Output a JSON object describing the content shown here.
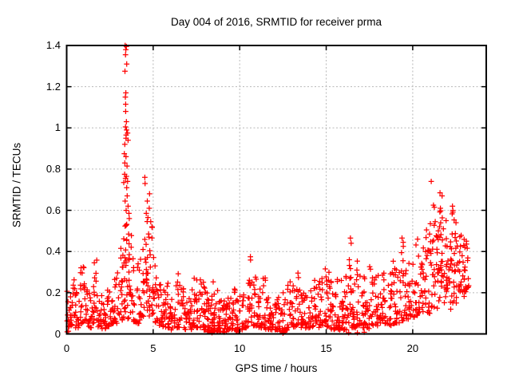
{
  "chart_data": {
    "type": "scatter",
    "title": "Day 004 of 2016, SRMTID for receiver prma",
    "xlabel": "GPS time / hours",
    "ylabel": "SRMTID / TECUs",
    "xlim": [
      0,
      24.25
    ],
    "ylim": [
      0,
      1.4
    ],
    "x_ticks": [
      0,
      5,
      10,
      15,
      20
    ],
    "x_tick_labels": [
      "0",
      "5",
      "10",
      "15",
      "20"
    ],
    "y_ticks": [
      0,
      0.2,
      0.4,
      0.6,
      0.8,
      1,
      1.2,
      1.4
    ],
    "y_tick_labels": [
      "0",
      "0.2",
      "0.4",
      "0.6",
      "0.8",
      "1",
      "1.2",
      "1.4"
    ],
    "grid": true,
    "legend": false,
    "marker": "plus",
    "marker_color": "#ff0000",
    "grid_color": "#b8b8b8",
    "frame_color": "#000000",
    "background_color": "#ffffff",
    "series_name": "SRMTID",
    "envelope_buckets": [
      [
        0.125,
        0.03,
        0.28,
        16
      ],
      [
        0.375,
        0.04,
        0.3,
        16
      ],
      [
        0.625,
        0.03,
        0.25,
        16
      ],
      [
        0.875,
        0.05,
        0.33,
        16
      ],
      [
        1.125,
        0.04,
        0.26,
        16
      ],
      [
        1.375,
        0.03,
        0.22,
        14
      ],
      [
        1.625,
        0.05,
        0.36,
        17,
        1.6
      ],
      [
        1.875,
        0.03,
        0.3,
        14
      ],
      [
        2.125,
        0.02,
        0.2,
        14
      ],
      [
        2.375,
        0.03,
        0.24,
        14
      ],
      [
        2.625,
        0.05,
        0.31,
        15
      ],
      [
        2.875,
        0.05,
        0.3,
        15
      ],
      [
        3.125,
        0.06,
        0.42,
        16,
        1.6
      ],
      [
        3.375,
        0.08,
        0.55,
        22,
        1.2
      ],
      [
        3.625,
        0.07,
        0.5,
        20,
        1.3
      ],
      [
        3.875,
        0.06,
        0.38,
        14
      ],
      [
        4.125,
        0.05,
        0.35,
        14
      ],
      [
        4.375,
        0.08,
        0.45,
        16,
        1.5
      ],
      [
        4.625,
        0.1,
        0.58,
        20,
        1.2
      ],
      [
        4.875,
        0.08,
        0.52,
        18,
        1.3
      ],
      [
        5.125,
        0.05,
        0.4,
        16,
        1.6
      ],
      [
        5.375,
        0.04,
        0.25,
        14
      ],
      [
        5.625,
        0.03,
        0.22,
        16
      ],
      [
        5.875,
        0.03,
        0.27,
        16
      ],
      [
        6.125,
        0.02,
        0.2,
        14
      ],
      [
        6.375,
        0.03,
        0.3,
        14
      ],
      [
        6.625,
        0.03,
        0.24,
        14
      ],
      [
        6.875,
        0.02,
        0.22,
        14
      ],
      [
        7.125,
        0.02,
        0.2,
        14
      ],
      [
        7.375,
        0.03,
        0.28,
        14
      ],
      [
        7.625,
        0.03,
        0.3,
        16
      ],
      [
        7.875,
        0.02,
        0.26,
        18
      ],
      [
        8.125,
        0.01,
        0.22,
        20
      ],
      [
        8.375,
        0.01,
        0.26,
        20
      ],
      [
        8.625,
        0.01,
        0.22,
        20
      ],
      [
        8.875,
        0.01,
        0.2,
        20
      ],
      [
        9.125,
        0.01,
        0.18,
        18
      ],
      [
        9.375,
        0.02,
        0.2,
        16
      ],
      [
        9.625,
        0.02,
        0.22,
        16
      ],
      [
        9.875,
        0.01,
        0.18,
        16
      ],
      [
        10.125,
        0.02,
        0.2,
        14
      ],
      [
        10.375,
        0.03,
        0.25,
        14
      ],
      [
        10.625,
        0.05,
        0.36,
        16,
        1.4
      ],
      [
        10.875,
        0.04,
        0.3,
        14
      ],
      [
        11.125,
        0.03,
        0.22,
        14
      ],
      [
        11.375,
        0.03,
        0.3,
        14
      ],
      [
        11.625,
        0.02,
        0.24,
        14
      ],
      [
        11.875,
        0.02,
        0.2,
        16
      ],
      [
        12.125,
        0.02,
        0.18,
        16
      ],
      [
        12.375,
        0.01,
        0.16,
        14
      ],
      [
        12.625,
        0.01,
        0.2,
        14
      ],
      [
        12.875,
        0.03,
        0.26,
        14
      ],
      [
        13.125,
        0.03,
        0.32,
        14
      ],
      [
        13.375,
        0.04,
        0.3,
        14
      ],
      [
        13.625,
        0.03,
        0.22,
        14
      ],
      [
        13.875,
        0.02,
        0.2,
        14
      ],
      [
        14.125,
        0.03,
        0.24,
        14
      ],
      [
        14.375,
        0.04,
        0.3,
        14
      ],
      [
        14.625,
        0.03,
        0.26,
        14
      ],
      [
        14.875,
        0.04,
        0.32,
        16
      ],
      [
        15.125,
        0.03,
        0.3,
        16
      ],
      [
        15.375,
        0.02,
        0.26,
        16
      ],
      [
        15.625,
        0.02,
        0.3,
        18
      ],
      [
        15.875,
        0.02,
        0.28,
        18
      ],
      [
        16.125,
        0.02,
        0.3,
        16
      ],
      [
        16.375,
        0.03,
        0.44,
        16,
        1.5
      ],
      [
        16.625,
        0.03,
        0.33,
        16
      ],
      [
        16.875,
        0.04,
        0.41,
        16,
        1.6
      ],
      [
        17.125,
        0.03,
        0.3,
        16
      ],
      [
        17.375,
        0.02,
        0.28,
        16
      ],
      [
        17.625,
        0.04,
        0.36,
        14
      ],
      [
        17.875,
        0.04,
        0.28,
        14
      ],
      [
        18.125,
        0.05,
        0.3,
        14
      ],
      [
        18.375,
        0.05,
        0.34,
        14
      ],
      [
        18.625,
        0.04,
        0.3,
        14
      ],
      [
        18.875,
        0.05,
        0.38,
        14
      ],
      [
        19.125,
        0.05,
        0.33,
        14
      ],
      [
        19.375,
        0.06,
        0.44,
        16,
        1.5
      ],
      [
        19.625,
        0.07,
        0.36,
        14
      ],
      [
        19.875,
        0.08,
        0.35,
        14
      ],
      [
        20.125,
        0.08,
        0.44,
        14,
        1.7
      ],
      [
        20.375,
        0.09,
        0.42,
        14,
        1.7
      ],
      [
        20.625,
        0.1,
        0.45,
        16,
        1.6
      ],
      [
        20.875,
        0.1,
        0.5,
        16,
        1.5
      ],
      [
        21.125,
        0.12,
        0.55,
        16,
        1.4
      ],
      [
        21.375,
        0.12,
        0.52,
        16,
        1.4
      ],
      [
        21.625,
        0.15,
        0.6,
        18,
        1.3
      ],
      [
        21.875,
        0.15,
        0.55,
        16,
        1.4
      ],
      [
        22.125,
        0.12,
        0.5,
        16,
        1.4
      ],
      [
        22.375,
        0.15,
        0.6,
        18,
        1.3
      ],
      [
        22.625,
        0.15,
        0.5,
        16,
        1.4
      ],
      [
        22.875,
        0.18,
        0.48,
        16,
        1.4
      ],
      [
        23.125,
        0.2,
        0.46,
        14,
        1.3
      ]
    ],
    "peak_points": [
      [
        3.38,
        1.4
      ],
      [
        3.45,
        1.395
      ],
      [
        3.42,
        1.38
      ],
      [
        3.4,
        1.355
      ],
      [
        3.47,
        1.31
      ],
      [
        3.37,
        1.275
      ],
      [
        3.42,
        1.17
      ],
      [
        3.39,
        1.15
      ],
      [
        3.41,
        1.115
      ],
      [
        3.41,
        1.08
      ],
      [
        3.45,
        1.03
      ],
      [
        3.4,
        1.005
      ],
      [
        3.46,
        0.99
      ],
      [
        3.52,
        0.975
      ],
      [
        3.44,
        0.965
      ],
      [
        3.43,
        0.95
      ],
      [
        3.55,
        0.94
      ],
      [
        3.36,
        0.92
      ],
      [
        3.33,
        0.875
      ],
      [
        3.43,
        0.86
      ],
      [
        3.36,
        0.83
      ],
      [
        3.49,
        0.815
      ],
      [
        3.35,
        0.775
      ],
      [
        3.45,
        0.765
      ],
      [
        3.4,
        0.755
      ],
      [
        3.52,
        0.74
      ],
      [
        3.3,
        0.735
      ],
      [
        3.47,
        0.71
      ],
      [
        3.5,
        0.67
      ],
      [
        3.38,
        0.645
      ],
      [
        3.55,
        0.62
      ],
      [
        3.44,
        0.6
      ],
      [
        3.6,
        0.585
      ],
      [
        3.62,
        0.56
      ],
      [
        4.52,
        0.76
      ],
      [
        4.53,
        0.73
      ],
      [
        4.79,
        0.68
      ],
      [
        4.66,
        0.645
      ],
      [
        4.77,
        0.61
      ],
      [
        4.6,
        0.585
      ],
      [
        4.7,
        0.565
      ],
      [
        4.86,
        0.545
      ],
      [
        4.93,
        0.52
      ],
      [
        10.62,
        0.375
      ],
      [
        16.4,
        0.465
      ],
      [
        16.44,
        0.44
      ],
      [
        19.38,
        0.465
      ],
      [
        19.45,
        0.445
      ],
      [
        20.28,
        0.46
      ],
      [
        21.07,
        0.74
      ],
      [
        21.58,
        0.685
      ],
      [
        21.7,
        0.67
      ],
      [
        21.2,
        0.625
      ],
      [
        21.25,
        0.615
      ],
      [
        22.3,
        0.62
      ],
      [
        21.6,
        0.61
      ],
      [
        21.62,
        0.598
      ],
      [
        21.57,
        0.592
      ],
      [
        22.32,
        0.6
      ],
      [
        22.28,
        0.583
      ],
      [
        21.93,
        0.55
      ],
      [
        21.3,
        0.545
      ],
      [
        22.5,
        0.54
      ],
      [
        21.02,
        0.535
      ],
      [
        20.8,
        0.505
      ],
      [
        21.55,
        0.52
      ],
      [
        21.48,
        0.5
      ],
      [
        23.1,
        0.45
      ],
      [
        22.95,
        0.43
      ]
    ],
    "floor_points": [
      [
        0.03,
        0.01
      ],
      [
        0.1,
        0.013
      ],
      [
        8.4,
        0.006
      ],
      [
        9.1,
        0.008
      ],
      [
        12.5,
        0.004
      ],
      [
        12.55,
        0.008
      ],
      [
        12.6,
        0.012
      ],
      [
        16.3,
        0.006
      ],
      [
        16.8,
        0.006
      ],
      [
        17.2,
        0.008
      ]
    ]
  }
}
